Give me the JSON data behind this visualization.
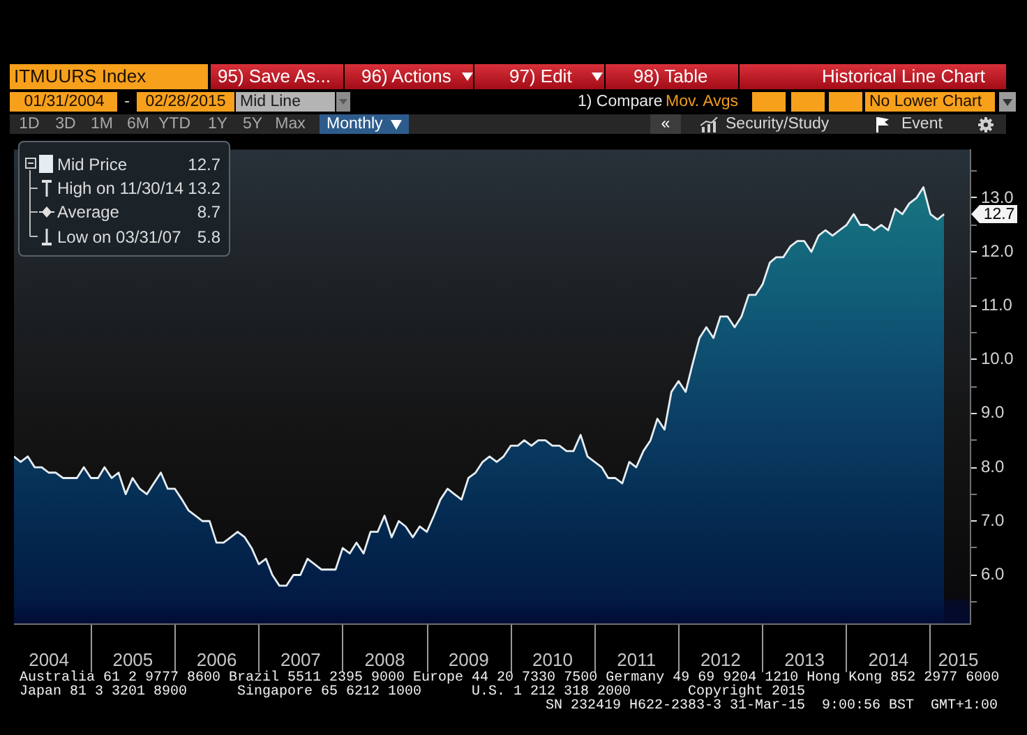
{
  "chart_data": {
    "type": "area",
    "title": "ITMUURS Index",
    "subtitle": "Historical Line Chart",
    "x": [
      "2004-01-31",
      "2004-02-29",
      "2004-03-31",
      "2004-04-30",
      "2004-05-31",
      "2004-06-30",
      "2004-07-31",
      "2004-08-31",
      "2004-09-30",
      "2004-10-31",
      "2004-11-30",
      "2004-12-31",
      "2005-01-31",
      "2005-02-28",
      "2005-03-31",
      "2005-04-30",
      "2005-05-31",
      "2005-06-30",
      "2005-07-31",
      "2005-08-31",
      "2005-09-30",
      "2005-10-31",
      "2005-11-30",
      "2005-12-31",
      "2006-01-31",
      "2006-02-28",
      "2006-03-31",
      "2006-04-30",
      "2006-05-31",
      "2006-06-30",
      "2006-07-31",
      "2006-08-31",
      "2006-09-30",
      "2006-10-31",
      "2006-11-30",
      "2006-12-31",
      "2007-01-31",
      "2007-02-28",
      "2007-03-31",
      "2007-04-30",
      "2007-05-31",
      "2007-06-30",
      "2007-07-31",
      "2007-08-31",
      "2007-09-30",
      "2007-10-31",
      "2007-11-30",
      "2007-12-31",
      "2008-01-31",
      "2008-02-29",
      "2008-03-31",
      "2008-04-30",
      "2008-05-31",
      "2008-06-30",
      "2008-07-31",
      "2008-08-31",
      "2008-09-30",
      "2008-10-31",
      "2008-11-30",
      "2008-12-31",
      "2009-01-31",
      "2009-02-28",
      "2009-03-31",
      "2009-04-30",
      "2009-05-31",
      "2009-06-30",
      "2009-07-31",
      "2009-08-31",
      "2009-09-30",
      "2009-10-31",
      "2009-11-30",
      "2009-12-31",
      "2010-01-31",
      "2010-02-28",
      "2010-03-31",
      "2010-04-30",
      "2010-05-31",
      "2010-06-30",
      "2010-07-31",
      "2010-08-31",
      "2010-09-30",
      "2010-10-31",
      "2010-11-30",
      "2010-12-31",
      "2011-01-31",
      "2011-02-28",
      "2011-03-31",
      "2011-04-30",
      "2011-05-31",
      "2011-06-30",
      "2011-07-31",
      "2011-08-31",
      "2011-09-30",
      "2011-10-31",
      "2011-11-30",
      "2011-12-31",
      "2012-01-31",
      "2012-02-29",
      "2012-03-31",
      "2012-04-30",
      "2012-05-31",
      "2012-06-30",
      "2012-07-31",
      "2012-08-31",
      "2012-09-30",
      "2012-10-31",
      "2012-11-30",
      "2012-12-31",
      "2013-01-31",
      "2013-02-28",
      "2013-03-31",
      "2013-04-30",
      "2013-05-31",
      "2013-06-30",
      "2013-07-31",
      "2013-08-31",
      "2013-09-30",
      "2013-10-31",
      "2013-11-30",
      "2013-12-31",
      "2014-01-31",
      "2014-02-28",
      "2014-03-31",
      "2014-04-30",
      "2014-05-31",
      "2014-06-30",
      "2014-07-31",
      "2014-08-31",
      "2014-09-30",
      "2014-10-31",
      "2014-11-30",
      "2014-12-31",
      "2015-01-31",
      "2015-02-28"
    ],
    "series": [
      {
        "name": "Mid Price",
        "color": "#e6edf2",
        "values": [
          8.2,
          8.1,
          8.2,
          8.0,
          8.0,
          7.9,
          7.9,
          7.8,
          7.8,
          7.8,
          8.0,
          7.8,
          7.8,
          8.0,
          7.8,
          7.9,
          7.5,
          7.8,
          7.6,
          7.5,
          7.7,
          7.9,
          7.6,
          7.6,
          7.4,
          7.2,
          7.1,
          7.0,
          7.0,
          6.6,
          6.6,
          6.7,
          6.8,
          6.7,
          6.5,
          6.2,
          6.3,
          6.0,
          5.8,
          5.8,
          6.0,
          6.0,
          6.3,
          6.2,
          6.1,
          6.1,
          6.1,
          6.5,
          6.4,
          6.6,
          6.4,
          6.8,
          6.8,
          7.1,
          6.7,
          7.0,
          6.9,
          6.7,
          6.9,
          6.8,
          7.1,
          7.4,
          7.6,
          7.5,
          7.4,
          7.8,
          7.9,
          8.1,
          8.2,
          8.1,
          8.2,
          8.4,
          8.4,
          8.5,
          8.4,
          8.5,
          8.5,
          8.4,
          8.4,
          8.3,
          8.3,
          8.6,
          8.2,
          8.1,
          8.0,
          7.8,
          7.8,
          7.7,
          8.1,
          8.0,
          8.3,
          8.5,
          8.9,
          8.7,
          9.4,
          9.6,
          9.4,
          9.9,
          10.4,
          10.6,
          10.4,
          10.8,
          10.8,
          10.6,
          10.8,
          11.2,
          11.2,
          11.4,
          11.8,
          11.9,
          11.9,
          12.1,
          12.2,
          12.2,
          12.0,
          12.3,
          12.4,
          12.3,
          12.4,
          12.5,
          12.7,
          12.5,
          12.5,
          12.4,
          12.5,
          12.4,
          12.8,
          12.7,
          12.9,
          13.0,
          13.2,
          12.7,
          12.6,
          12.7
        ]
      }
    ],
    "xlim": [
      "2004-01-31",
      "2015-06-20"
    ],
    "xticks": [
      {
        "value": "2004-07-01",
        "label": "2004"
      },
      {
        "value": "2005-01-01",
        "label": null
      },
      {
        "value": "2005-07-01",
        "label": "2005"
      },
      {
        "value": "2006-01-01",
        "label": null
      },
      {
        "value": "2006-07-01",
        "label": "2006"
      },
      {
        "value": "2007-01-01",
        "label": null
      },
      {
        "value": "2007-07-01",
        "label": "2007"
      },
      {
        "value": "2008-01-01",
        "label": null
      },
      {
        "value": "2008-07-01",
        "label": "2008"
      },
      {
        "value": "2009-01-01",
        "label": null
      },
      {
        "value": "2009-07-01",
        "label": "2009"
      },
      {
        "value": "2010-01-01",
        "label": null
      },
      {
        "value": "2010-07-01",
        "label": "2010"
      },
      {
        "value": "2011-01-01",
        "label": null
      },
      {
        "value": "2011-07-01",
        "label": "2011"
      },
      {
        "value": "2012-01-01",
        "label": null
      },
      {
        "value": "2012-07-01",
        "label": "2012"
      },
      {
        "value": "2013-01-01",
        "label": null
      },
      {
        "value": "2013-07-01",
        "label": "2013"
      },
      {
        "value": "2014-01-01",
        "label": null
      },
      {
        "value": "2014-07-01",
        "label": "2014"
      },
      {
        "value": "2015-01-01",
        "label": null
      },
      {
        "value": "2015-05-01",
        "label": "2015"
      }
    ],
    "ylim": [
      5.1,
      13.9
    ],
    "yticks": [
      {
        "value": 5.5,
        "label": null
      },
      {
        "value": 6,
        "label": "6.0"
      },
      {
        "value": 6.5,
        "label": null
      },
      {
        "value": 7,
        "label": "7.0"
      },
      {
        "value": 7.5,
        "label": null
      },
      {
        "value": 8,
        "label": "8.0"
      },
      {
        "value": 8.5,
        "label": null
      },
      {
        "value": 9,
        "label": "9.0"
      },
      {
        "value": 9.5,
        "label": null
      },
      {
        "value": 10,
        "label": "10.0"
      },
      {
        "value": 10.5,
        "label": null
      },
      {
        "value": 11,
        "label": "11.0"
      },
      {
        "value": 11.5,
        "label": null
      },
      {
        "value": 12,
        "label": "12.0"
      },
      {
        "value": 12.5,
        "label": null
      },
      {
        "value": 13,
        "label": "13.0"
      },
      {
        "value": 13.5,
        "label": null
      }
    ],
    "legend": "top left",
    "annotations": [
      "95) Save As...",
      "96) Actions",
      "97) Edit",
      "98) Table",
      "01/31/2004",
      "-",
      "02/28/2015",
      "Mid Line",
      "1) Compare",
      "Mov. Avgs",
      "No Lower Chart",
      "1D",
      "3D",
      "1M",
      "6M",
      "YTD",
      "1Y",
      "5Y",
      "Max",
      "Monthly",
      "«",
      "Security/Study",
      "Event",
      "12.7",
      "High on 11/30/14",
      "13.2",
      "Average",
      "8.7",
      "Low on 03/31/07",
      "5.8",
      "12.7",
      "Australia 61 2 9777 8600 Brazil 5511 2395 9000 Europe 44 20 7330 7500 Germany 49 69 9204 1210 Hong Kong 852 2977 6000",
      "Japan 81 3 3201 8900",
      "Singapore 65 6212 1000",
      "U.S. 1 212 318 2000",
      "Copyright 2015",
      "SN 232419 H622-2383-3 31-Mar-15  9:00:56 BST  GMT+1:00"
    ]
  }
}
